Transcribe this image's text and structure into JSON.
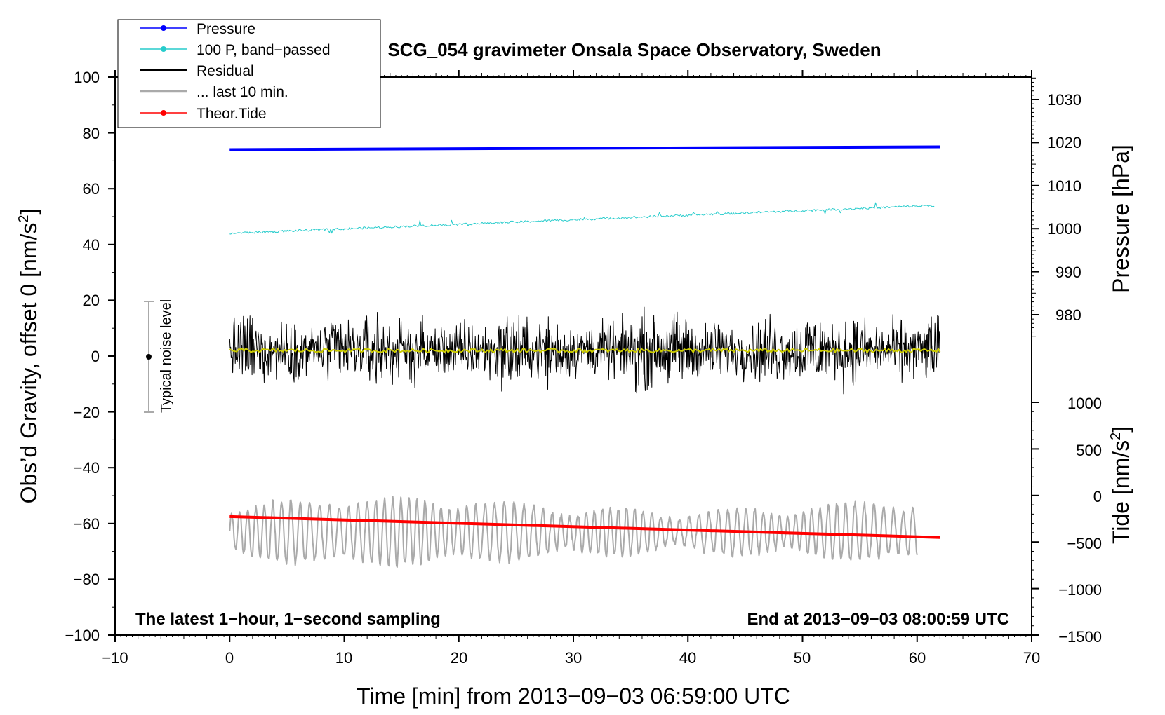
{
  "chart_data": {
    "type": "line",
    "title": "SCG_054 gravimeter Onsala Space Observatory, Sweden",
    "xlabel": "Time [min] from 2013−09−03 06:59:00 UTC",
    "ylabel": "Obs’d Gravity, offset 0 [nm/s",
    "ylabel_sup": "2",
    "ylabel_close": "]",
    "y2label": "Pressure [hPa]",
    "y3label": "Tide [nm/s",
    "y3label_sup": "2",
    "y3label_close": "]",
    "xlim": [
      -10,
      70
    ],
    "ylim": [
      -100,
      100
    ],
    "xticks": [
      -10,
      0,
      10,
      20,
      30,
      40,
      50,
      60,
      70
    ],
    "xtick_labels": [
      "−10",
      "0",
      "10",
      "20",
      "30",
      "40",
      "50",
      "60",
      "70"
    ],
    "yticks": [
      100,
      80,
      60,
      40,
      20,
      0,
      -20,
      -40,
      -60,
      -80,
      -100
    ],
    "ytick_labels": [
      "100",
      "80",
      "60",
      "40",
      "20",
      "0",
      "−20",
      "−40",
      "−60",
      "−80",
      "−100"
    ],
    "pressure_axis": {
      "ticks": [
        1030,
        1020,
        1010,
        1000,
        990,
        980
      ],
      "labels": [
        "1030",
        "1020",
        "1010",
        "1000",
        "990",
        "980"
      ]
    },
    "tide_axis": {
      "ticks": [
        1000,
        500,
        0,
        -500,
        -1000,
        -1500
      ],
      "labels": [
        "1000",
        "500",
        "0",
        "−500",
        "−1000",
        "−1500"
      ]
    },
    "legend_position": "top-left",
    "legend": [
      {
        "label": "Pressure",
        "color": "#0000ff",
        "marker": true
      },
      {
        "label": "100 P, band−passed",
        "color": "#27cccc",
        "marker": true
      },
      {
        "label": "Residual",
        "color": "#000000",
        "marker": false
      },
      {
        "label": "... last 10 min.",
        "color": "#aaaaaa",
        "marker": false
      },
      {
        "label": "Theor.Tide",
        "color": "#ff0000",
        "marker": true
      }
    ],
    "series": [
      {
        "name": "Pressure",
        "color": "#0000ff",
        "x_range": [
          0,
          62
        ],
        "y_start": 74,
        "y_end": 75
      },
      {
        "name": "100 P, band−passed",
        "color": "#27cccc",
        "x_range": [
          0,
          61.5
        ],
        "y_start": 44,
        "y_end": 54,
        "noise_amplitude": 0.8
      },
      {
        "name": "Residual",
        "color": "#000000",
        "x_range": [
          0,
          62
        ],
        "y_center": 2,
        "y_range": [
          -14,
          19
        ]
      },
      {
        "name": "Residual smoothed",
        "color": "#cccc00",
        "x_range": [
          0,
          62
        ],
        "y_center": 2
      },
      {
        "name": "... last 10 min.",
        "color": "#aaaaaa",
        "x_range": [
          0,
          60
        ],
        "y_center": -63,
        "y_range": [
          -77,
          -47
        ]
      },
      {
        "name": "Theor.Tide",
        "color": "#ff0000",
        "x_range": [
          0,
          62
        ],
        "y_start": -57.5,
        "y_end": -65
      }
    ],
    "noise_marker": {
      "label": "Typical noise level",
      "x": -7,
      "y": 0,
      "y_range": [
        -20,
        20
      ]
    },
    "annotations": {
      "bottom_left": "The latest 1−hour, 1−second sampling",
      "bottom_right": "End at 2013−09−03 08:00:59 UTC"
    }
  },
  "colors": {
    "pressure": "#0000ff",
    "bandpassed": "#27cccc",
    "residual": "#000000",
    "smoothed": "#cccc00",
    "last10": "#aaaaaa",
    "tide": "#ff0000"
  }
}
